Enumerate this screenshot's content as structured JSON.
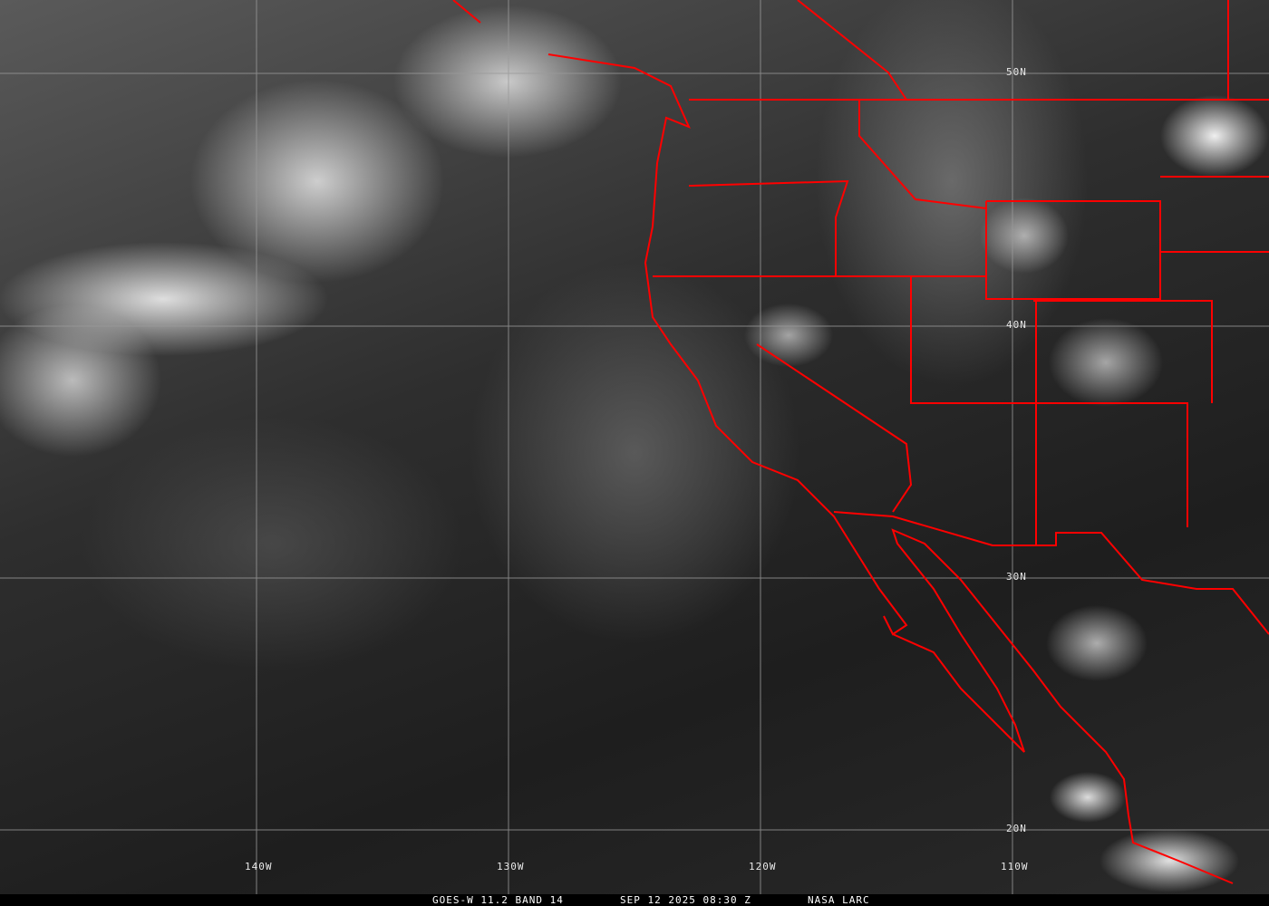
{
  "image": {
    "caption": {
      "satellite_band": "GOES-W 11.2 BAND 14",
      "datetime": "SEP 12 2025 08:30 Z",
      "credit": "NASA LARC"
    },
    "latitude_labels": [
      "50N",
      "40N",
      "30N",
      "20N"
    ],
    "longitude_labels": [
      "140W",
      "130W",
      "120W",
      "110W"
    ],
    "colors": {
      "borders": "#ff0000",
      "grid": "#9a9a9a",
      "caption_bg": "#000000"
    }
  }
}
